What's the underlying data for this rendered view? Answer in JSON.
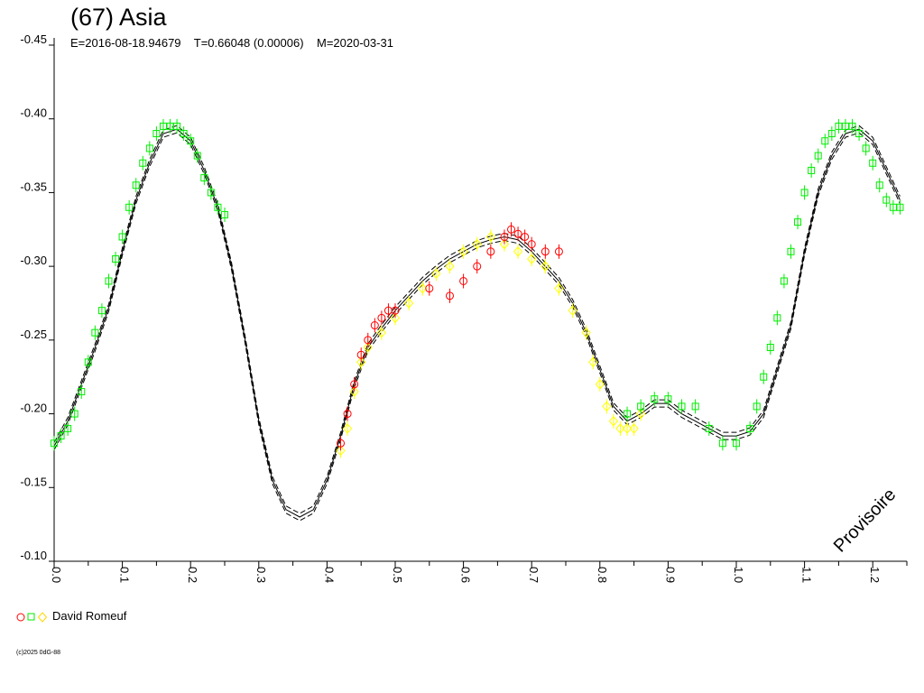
{
  "header": {
    "title": "(67) Asia",
    "epoch": "E=2016-08-18.94679",
    "period": "T=0.66048 (0.00006)",
    "modified": "M=2020-03-31"
  },
  "legend": {
    "label": "David Romeuf",
    "markers": [
      "circle",
      "square",
      "diamond"
    ]
  },
  "watermark": "Provisoire",
  "copyright": "(c)2025 0dG-88",
  "chart_data": {
    "type": "scatter",
    "title": "(67) Asia",
    "xlabel": "",
    "ylabel": "",
    "xlim": [
      0.0,
      1.25
    ],
    "ylim": [
      -0.45,
      -0.1
    ],
    "y_inverted": true,
    "grid": false,
    "legend_position": "bottom-left",
    "x_ticks": [
      "0.0",
      "0.1",
      "0.2",
      "0.3",
      "0.4",
      "0.5",
      "0.6",
      "0.7",
      "0.8",
      "0.9",
      "1.0",
      "1.1",
      "1.2"
    ],
    "y_ticks": [
      "-0.45",
      "-0.40",
      "-0.35",
      "-0.30",
      "-0.25",
      "-0.20",
      "-0.15",
      "-0.10"
    ],
    "fit_curve": {
      "x": [
        0.0,
        0.02,
        0.04,
        0.06,
        0.08,
        0.1,
        0.12,
        0.14,
        0.16,
        0.18,
        0.2,
        0.22,
        0.24,
        0.26,
        0.28,
        0.3,
        0.32,
        0.34,
        0.36,
        0.38,
        0.4,
        0.42,
        0.44,
        0.46,
        0.48,
        0.5,
        0.52,
        0.54,
        0.56,
        0.58,
        0.6,
        0.62,
        0.64,
        0.66,
        0.68,
        0.7,
        0.72,
        0.74,
        0.76,
        0.78,
        0.8,
        0.82,
        0.84,
        0.86,
        0.88,
        0.9,
        0.92,
        0.94,
        0.96,
        0.98,
        1.0,
        1.02,
        1.04,
        1.06,
        1.08,
        1.1,
        1.12,
        1.14,
        1.16,
        1.18,
        1.2,
        1.22,
        1.24
      ],
      "y": [
        -0.178,
        -0.195,
        -0.22,
        -0.245,
        -0.272,
        -0.31,
        -0.345,
        -0.37,
        -0.39,
        -0.393,
        -0.385,
        -0.365,
        -0.34,
        -0.3,
        -0.25,
        -0.195,
        -0.155,
        -0.135,
        -0.13,
        -0.135,
        -0.155,
        -0.185,
        -0.22,
        -0.245,
        -0.258,
        -0.27,
        -0.28,
        -0.29,
        -0.298,
        -0.305,
        -0.31,
        -0.315,
        -0.318,
        -0.32,
        -0.318,
        -0.31,
        -0.3,
        -0.29,
        -0.275,
        -0.255,
        -0.23,
        -0.205,
        -0.195,
        -0.2,
        -0.207,
        -0.207,
        -0.2,
        -0.195,
        -0.19,
        -0.185,
        -0.185,
        -0.188,
        -0.2,
        -0.23,
        -0.26,
        -0.31,
        -0.35,
        -0.375,
        -0.39,
        -0.393,
        -0.385,
        -0.365,
        -0.345
      ]
    },
    "series": [
      {
        "name": "David Romeuf",
        "session": 1,
        "marker": "circle",
        "color": "#ff0000",
        "x": [
          0.42,
          0.43,
          0.44,
          0.45,
          0.46,
          0.47,
          0.48,
          0.49,
          0.5,
          0.55,
          0.58,
          0.6,
          0.62,
          0.64,
          0.66,
          0.67,
          0.68,
          0.69,
          0.7,
          0.72,
          0.74
        ],
        "y": [
          -0.18,
          -0.2,
          -0.22,
          -0.24,
          -0.25,
          -0.26,
          -0.265,
          -0.27,
          -0.27,
          -0.285,
          -0.28,
          -0.29,
          -0.3,
          -0.31,
          -0.32,
          -0.325,
          -0.322,
          -0.32,
          -0.315,
          -0.31,
          -0.31
        ]
      },
      {
        "name": "David Romeuf",
        "session": 2,
        "marker": "square",
        "color": "#00ee00",
        "x": [
          0.0,
          0.01,
          0.02,
          0.03,
          0.04,
          0.05,
          0.06,
          0.07,
          0.08,
          0.09,
          0.1,
          0.11,
          0.12,
          0.13,
          0.14,
          0.15,
          0.16,
          0.17,
          0.18,
          0.19,
          0.2,
          0.21,
          0.22,
          0.23,
          0.24,
          0.25,
          0.84,
          0.86,
          0.88,
          0.9,
          0.92,
          0.94,
          0.96,
          0.98,
          1.0,
          1.02,
          1.03,
          1.04,
          1.05,
          1.06,
          1.07,
          1.08,
          1.09,
          1.1,
          1.11,
          1.12,
          1.13,
          1.14,
          1.15,
          1.16,
          1.17,
          1.18,
          1.19,
          1.2,
          1.21,
          1.22,
          1.23,
          1.24
        ],
        "y": [
          -0.18,
          -0.185,
          -0.19,
          -0.2,
          -0.215,
          -0.235,
          -0.255,
          -0.27,
          -0.29,
          -0.305,
          -0.32,
          -0.34,
          -0.355,
          -0.37,
          -0.38,
          -0.39,
          -0.395,
          -0.395,
          -0.395,
          -0.39,
          -0.385,
          -0.375,
          -0.36,
          -0.35,
          -0.34,
          -0.335,
          -0.2,
          -0.205,
          -0.21,
          -0.21,
          -0.205,
          -0.205,
          -0.19,
          -0.18,
          -0.18,
          -0.19,
          -0.205,
          -0.225,
          -0.245,
          -0.265,
          -0.29,
          -0.31,
          -0.33,
          -0.35,
          -0.365,
          -0.375,
          -0.385,
          -0.39,
          -0.395,
          -0.395,
          -0.395,
          -0.39,
          -0.38,
          -0.37,
          -0.355,
          -0.345,
          -0.34,
          -0.34
        ]
      },
      {
        "name": "David Romeuf",
        "session": 3,
        "marker": "diamond",
        "color": "#ffff00",
        "x": [
          0.42,
          0.43,
          0.44,
          0.45,
          0.46,
          0.48,
          0.5,
          0.52,
          0.54,
          0.56,
          0.58,
          0.6,
          0.62,
          0.64,
          0.66,
          0.68,
          0.7,
          0.72,
          0.74,
          0.76,
          0.78,
          0.79,
          0.8,
          0.81,
          0.82,
          0.83,
          0.84,
          0.85,
          0.86
        ],
        "y": [
          -0.175,
          -0.19,
          -0.215,
          -0.235,
          -0.245,
          -0.255,
          -0.265,
          -0.275,
          -0.285,
          -0.295,
          -0.3,
          -0.31,
          -0.315,
          -0.32,
          -0.315,
          -0.31,
          -0.305,
          -0.3,
          -0.285,
          -0.27,
          -0.255,
          -0.235,
          -0.22,
          -0.205,
          -0.195,
          -0.19,
          -0.19,
          -0.19,
          -0.2
        ]
      }
    ]
  }
}
